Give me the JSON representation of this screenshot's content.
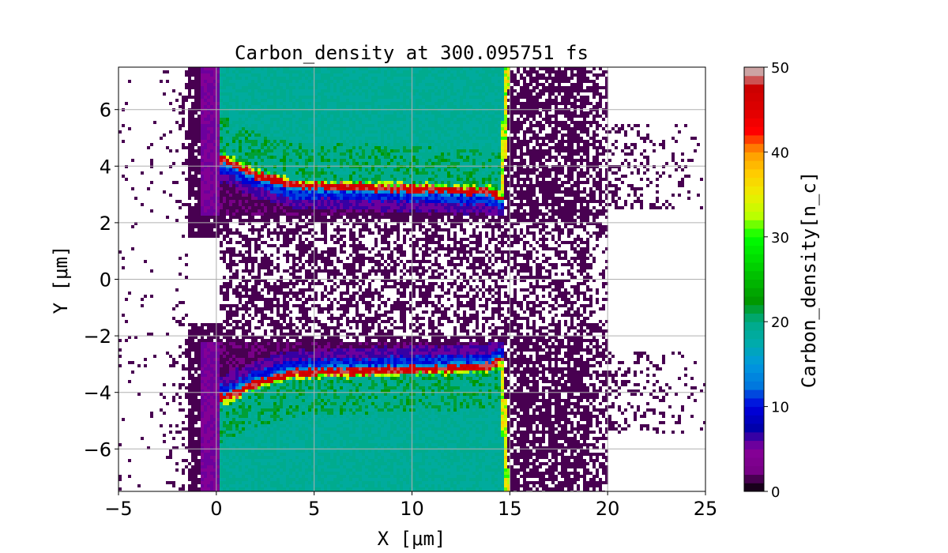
{
  "chart_data": {
    "type": "heatmap",
    "title": "Carbon_density at 300.095751 fs",
    "xlabel": "X  [μm]",
    "ylabel": "Y  [μm]",
    "colorbar_label": "Carbon_density[n_c]",
    "xlim": [
      -5,
      25
    ],
    "ylim": [
      -7.5,
      7.5
    ],
    "clim": [
      0,
      50
    ],
    "levels": 50,
    "colormap": "nipy_spectral",
    "grid": true,
    "xticks": [
      "−5",
      "0",
      "5",
      "10",
      "15",
      "20",
      "25"
    ],
    "xtick_values": [
      -5,
      0,
      5,
      10,
      15,
      20,
      25
    ],
    "yticks": [
      "−6",
      "−4",
      "−2",
      "0",
      "2",
      "4",
      "6"
    ],
    "ytick_values": [
      -6,
      -4,
      -2,
      0,
      2,
      4,
      6
    ],
    "cbar_ticks": [
      "0",
      "10",
      "20",
      "30",
      "40",
      "50"
    ],
    "cbar_tick_values": [
      0,
      10,
      20,
      30,
      40,
      50
    ],
    "features": {
      "target_x": [
        0.1,
        14.7
      ],
      "target_bulk_density": 18,
      "compressed_edge_density": 45,
      "compressed_edge_abs_y": [
        [
          0.5,
          4.2
        ],
        [
          2,
          3.7
        ],
        [
          4,
          3.3
        ],
        [
          10,
          3.2
        ],
        [
          14,
          3.1
        ],
        [
          14.5,
          2.9
        ]
      ],
      "rear_surface_density": 30,
      "front_surface_density": 4,
      "plasma_density": 1,
      "plasma_x": [
        -3,
        20
      ],
      "channel_abs_y": 2
    }
  }
}
